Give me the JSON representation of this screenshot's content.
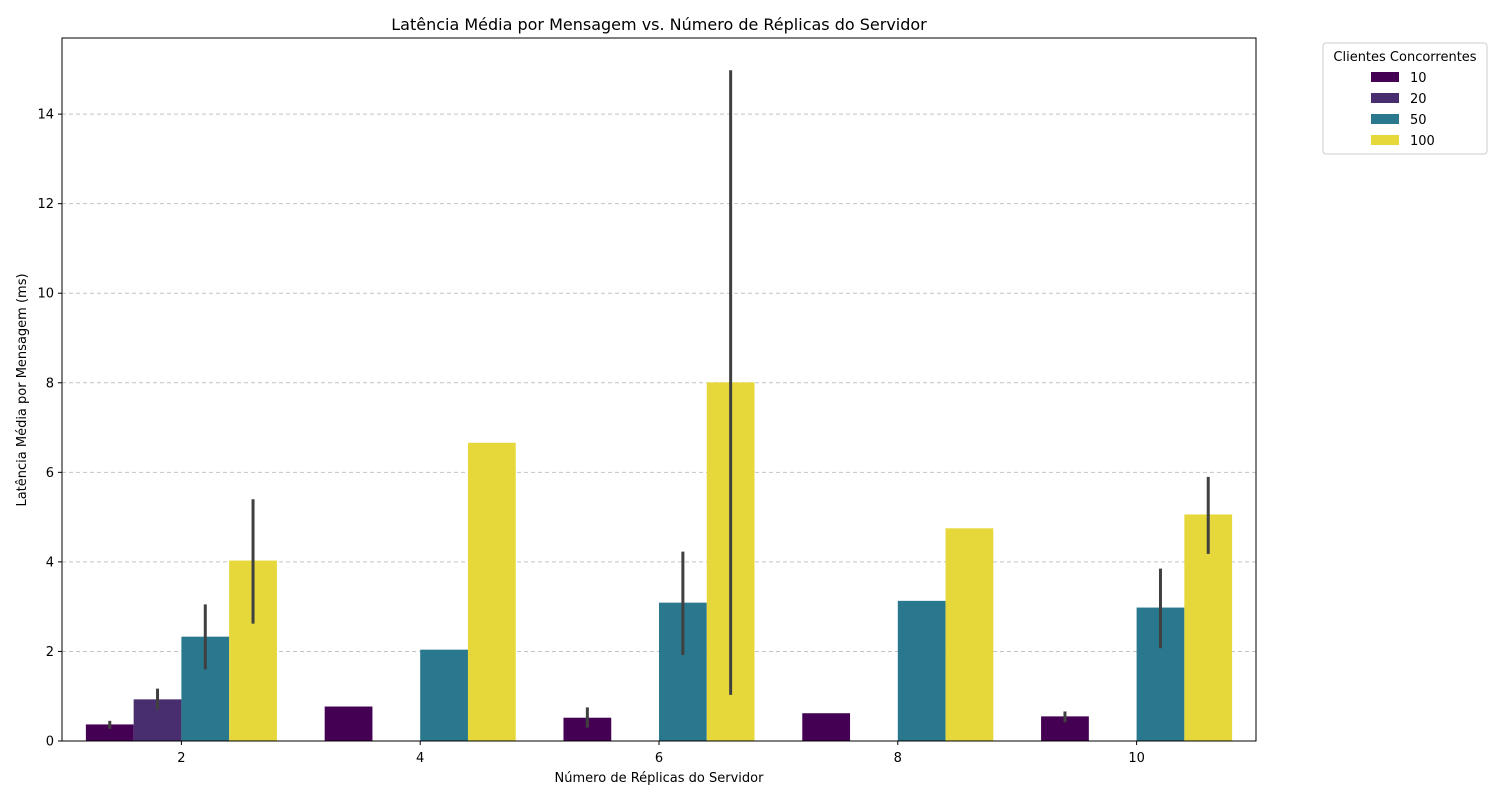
{
  "chart_data": {
    "type": "bar",
    "title": "Latência Média por Mensagem vs. Número de Réplicas do Servidor",
    "xlabel": "Número de Réplicas do Servidor",
    "ylabel": "Latência Média por Mensagem (ms)",
    "categories": [
      "2",
      "4",
      "6",
      "8",
      "10"
    ],
    "ylim": [
      0,
      15.7
    ],
    "yticks": [
      0,
      2,
      4,
      6,
      8,
      10,
      12,
      14
    ],
    "grid": "horizontal-dashed",
    "legend": {
      "title": "Clientes Concorrentes",
      "placement": "outside-top-right"
    },
    "series": [
      {
        "name": "10",
        "color": "#440154",
        "values": [
          0.37,
          0.77,
          0.52,
          0.62,
          0.55
        ],
        "error_low": [
          0.27,
          null,
          0.3,
          null,
          0.42
        ],
        "error_high": [
          0.45,
          null,
          0.75,
          null,
          0.66
        ]
      },
      {
        "name": "20",
        "color": "#482e6e",
        "values": [
          0.93,
          null,
          null,
          null,
          null
        ],
        "error_low": [
          0.7,
          null,
          null,
          null,
          null
        ],
        "error_high": [
          1.17,
          null,
          null,
          null,
          null
        ]
      },
      {
        "name": "50",
        "color": "#2a788e",
        "values": [
          2.33,
          2.04,
          3.09,
          3.13,
          2.98
        ],
        "error_low": [
          1.6,
          null,
          1.92,
          null,
          2.07
        ],
        "error_high": [
          3.05,
          null,
          4.23,
          null,
          3.85
        ]
      },
      {
        "name": "100",
        "color": "#e6d83a",
        "values": [
          4.03,
          6.66,
          8.01,
          4.75,
          5.06
        ],
        "error_low": [
          2.62,
          null,
          1.03,
          null,
          4.18
        ],
        "error_high": [
          5.4,
          null,
          14.98,
          null,
          5.9
        ]
      }
    ]
  }
}
